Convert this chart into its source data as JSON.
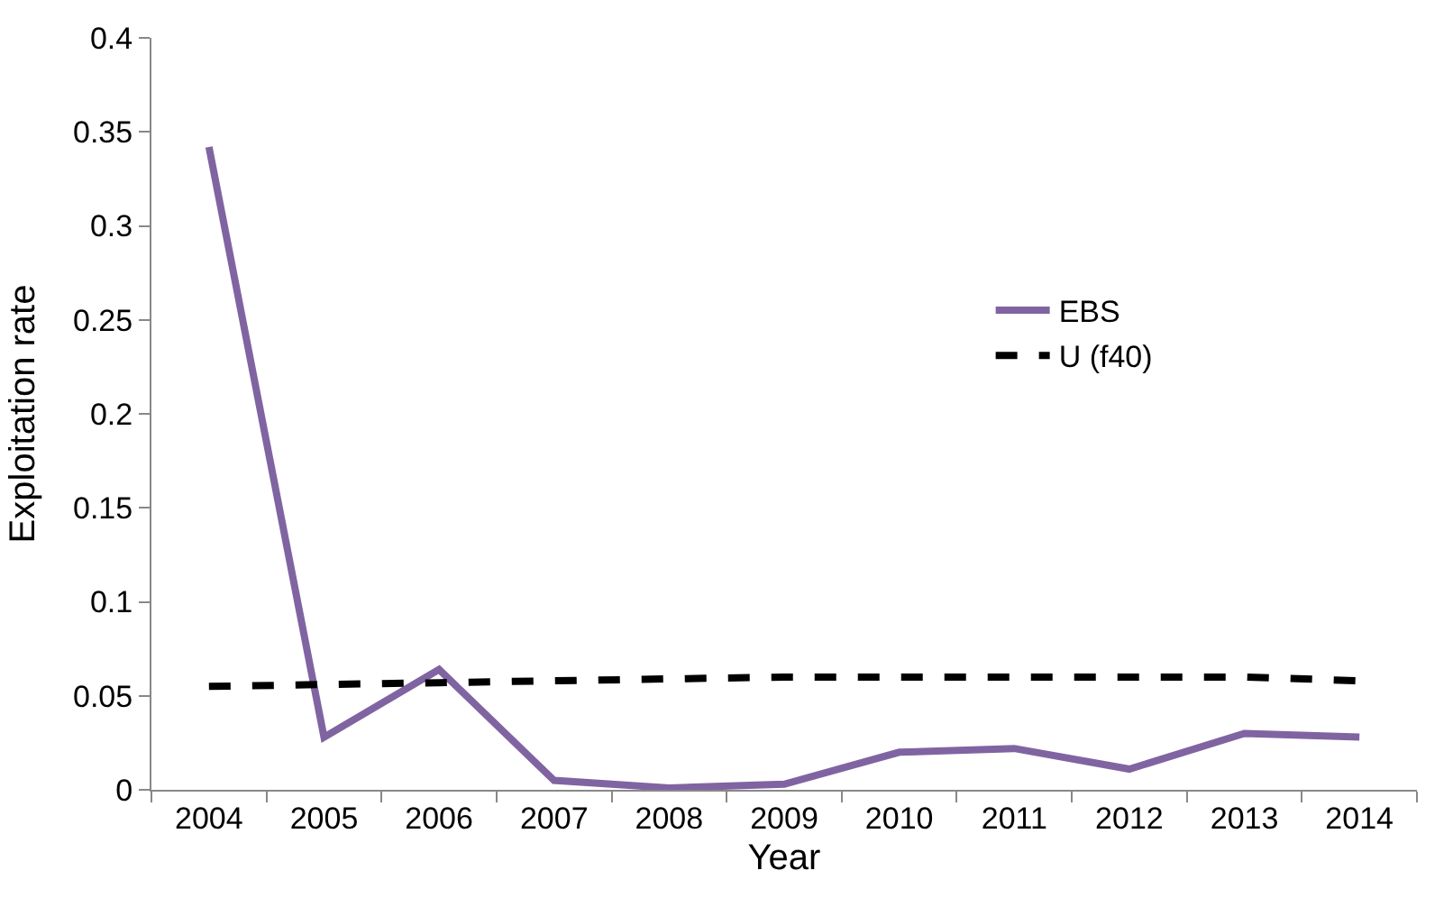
{
  "chart_data": {
    "type": "line",
    "xlabel": "Year",
    "ylabel": "Exploitation rate",
    "categories": [
      "2004",
      "2005",
      "2006",
      "2007",
      "2008",
      "2009",
      "2010",
      "2011",
      "2012",
      "2013",
      "2014"
    ],
    "series": [
      {
        "name": "EBS",
        "color": "#8064a2",
        "line_style": "solid",
        "values": [
          0.342,
          0.028,
          0.064,
          0.005,
          0.001,
          0.003,
          0.02,
          0.022,
          0.011,
          0.03,
          0.028
        ]
      },
      {
        "name": "U (f40)",
        "color": "#000000",
        "line_style": "dashed",
        "values": [
          0.055,
          0.056,
          0.057,
          0.058,
          0.059,
          0.06,
          0.06,
          0.06,
          0.06,
          0.06,
          0.058
        ]
      }
    ],
    "ylim": [
      0,
      0.4
    ],
    "yticks": [
      {
        "value": 0,
        "label": "0"
      },
      0.05,
      0.1,
      0.15,
      0.2,
      0.25,
      0.3,
      0.35,
      0.4
    ],
    "grid": false,
    "legend": "right",
    "marker": "none"
  }
}
